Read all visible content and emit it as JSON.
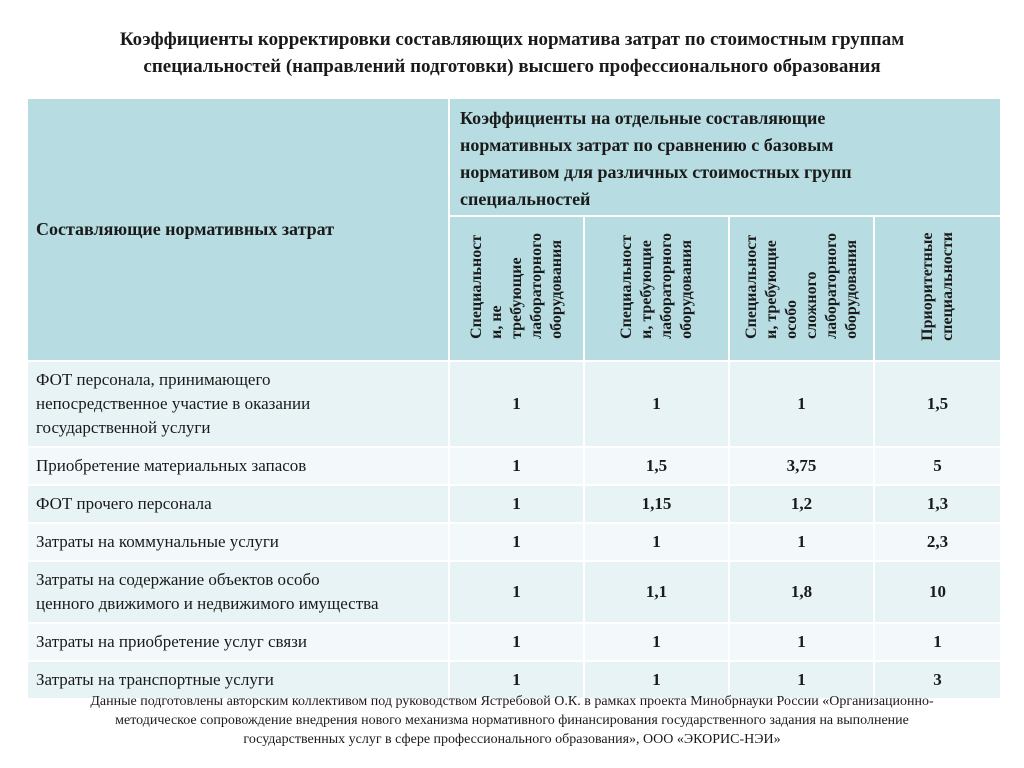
{
  "title": {
    "line1": "Коэффициенты корректировки составляющих норматива затрат по стоимостным группам",
    "line2": "специальностей (направлений подготовки) высшего профессионального образования"
  },
  "table": {
    "left_header": "Составляющие нормативных затрат",
    "group_header": {
      "line1": "Коэффициенты на отдельные составляющие",
      "line2": "нормативных затрат по сравнению с базовым",
      "line3": "нормативом для различных стоимостных групп",
      "line4": "специальностей"
    },
    "columns": [
      {
        "lines": [
          "Специальност",
          "и, не",
          "требующие",
          "лабораторного",
          "оборудования"
        ]
      },
      {
        "lines": [
          "Специальност",
          "и, требующие",
          "лабораторного",
          "оборудования"
        ]
      },
      {
        "lines": [
          "Специальност",
          "и, требующие",
          "особо",
          "сложного",
          "лабораторного",
          "оборудования"
        ]
      },
      {
        "lines": [
          "Приоритетные",
          "специальности"
        ]
      }
    ],
    "rows": [
      {
        "label_lines": [
          "ФОТ персонала, принимающего",
          "непосредственное участие в оказании",
          "государственной услуги"
        ],
        "values": [
          "1",
          "1",
          "1",
          "1,5"
        ]
      },
      {
        "label_lines": [
          "Приобретение материальных запасов"
        ],
        "values": [
          "1",
          "1,5",
          "3,75",
          "5"
        ]
      },
      {
        "label_lines": [
          "ФОТ прочего персонала"
        ],
        "values": [
          "1",
          "1,15",
          "1,2",
          "1,3"
        ]
      },
      {
        "label_lines": [
          "Затраты на коммунальные услуги"
        ],
        "values": [
          "1",
          "1",
          "1",
          "2,3"
        ]
      },
      {
        "label_lines": [
          "Затраты на содержание объектов особо",
          "ценного движимого и недвижимого имущества"
        ],
        "values": [
          "1",
          "1,1",
          "1,8",
          "10"
        ]
      },
      {
        "label_lines": [
          "Затраты на приобретение услуг связи"
        ],
        "values": [
          "1",
          "1",
          "1",
          "1"
        ]
      },
      {
        "label_lines": [
          "Затраты на транспортные услуги"
        ],
        "values": [
          "1",
          "1",
          "1",
          "3"
        ]
      }
    ]
  },
  "footnote": {
    "line1": "Данные подготовлены авторским коллективом под руководством Ястребовой О.К. в рамках проекта Минобрнауки России «Организационно-",
    "line2": "методическое сопровождение внедрения нового механизма нормативного финансирования государственного задания на выполнение",
    "line3": "государственных услуг в сфере профессионального образования», ООО «ЭКОРИС-НЭИ»"
  }
}
